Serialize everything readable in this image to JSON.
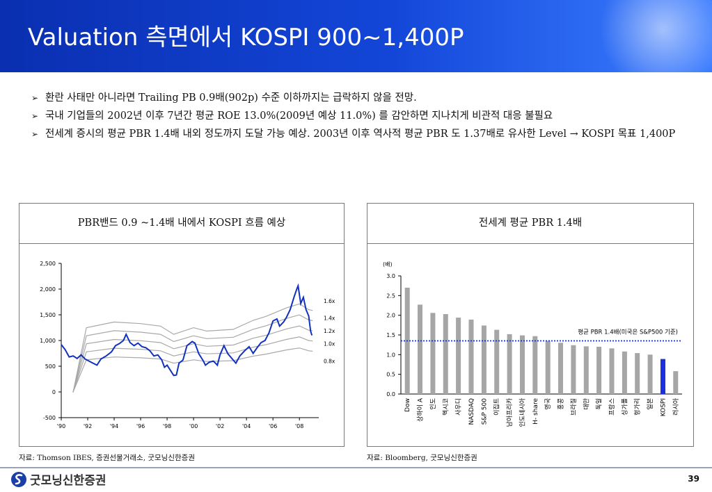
{
  "title": "Valuation 측면에서 KOSPI 900~1,400P",
  "bullets": [
    "환란 사태만 아니라면 Trailing PB 0.9배(902p) 수준 이하까지는 급락하지 않을 전망.",
    "국내 기업들의 2002년 이후 7년간 평균 ROE 13.0%(2009년 예상 11.0%) 를 감안하면 지나치게 비관적 대응 불필요",
    "전세계 증시의 평균 PBR 1.4배 내외 정도까지 도달 가능 예상. 2003년 이후 역사적 평균 PBR 도 1.37배로 유사한 Level → KOSPI 목표 1,400P"
  ],
  "left_panel": {
    "title": "PBR밴드 0.9 ~1.4배 내에서 KOSPI 흐름 예상",
    "source": "자료: Thomson IBES, 증권선물거래소, 굿모닝신한증권"
  },
  "right_panel": {
    "title": "전세계 평균 PBR 1.4배",
    "source": "자료: Bloomberg, 굿모닝신한증권"
  },
  "footer": {
    "logo_text": "굿모닝신한증권",
    "page": "39"
  },
  "colors": {
    "header": "#1346d8",
    "kospi_line": "#1030c0",
    "bars": "#a6a6a6",
    "highlight_bar": "#1e2fe0",
    "avg_line": "#1a2fd0"
  },
  "chart_data": [
    {
      "type": "line",
      "title": "PBR밴드 0.9 ~1.4배 내에서 KOSPI 흐름 예상",
      "x_tick_labels": [
        "'90",
        "'92",
        "'94",
        "'96",
        "'98",
        "'00",
        "'02",
        "'04",
        "'06",
        "'08"
      ],
      "xlim": [
        1990,
        2009.2
      ],
      "y_tick_labels": [
        "2,500",
        "2,000",
        "1,500",
        "1,000",
        "500",
        "0",
        "-500"
      ],
      "ylim": [
        -500,
        2500
      ],
      "band_labels": [
        "1.6x",
        "1.4x",
        "1.2x",
        "1.0x",
        "0.8x"
      ],
      "band_multiples": [
        1.6,
        1.4,
        1.2,
        1.0,
        0.8
      ],
      "band_bps_base": [
        [
          1990.9,
          0
        ],
        [
          1991.9,
          780
        ],
        [
          1994,
          850
        ],
        [
          1996,
          830
        ],
        [
          1997.5,
          800
        ],
        [
          1998.5,
          700
        ],
        [
          2000,
          780
        ],
        [
          2001,
          740
        ],
        [
          2003,
          760
        ],
        [
          2004.5,
          870
        ],
        [
          2005.5,
          920
        ],
        [
          2007,
          1020
        ],
        [
          2008,
          1070
        ],
        [
          2008.7,
          1000
        ],
        [
          2009,
          990
        ]
      ],
      "series": [
        {
          "name": "KOSPI",
          "points": [
            [
              1990,
              920
            ],
            [
              1990.3,
              820
            ],
            [
              1990.6,
              680
            ],
            [
              1990.9,
              700
            ],
            [
              1991.2,
              650
            ],
            [
              1991.5,
              720
            ],
            [
              1991.8,
              640
            ],
            [
              1992.1,
              600
            ],
            [
              1992.4,
              560
            ],
            [
              1992.7,
              520
            ],
            [
              1993.0,
              640
            ],
            [
              1993.4,
              700
            ],
            [
              1993.8,
              780
            ],
            [
              1994.1,
              900
            ],
            [
              1994.4,
              940
            ],
            [
              1994.7,
              1000
            ],
            [
              1994.9,
              1120
            ],
            [
              1995.2,
              960
            ],
            [
              1995.5,
              900
            ],
            [
              1995.8,
              950
            ],
            [
              1996.1,
              880
            ],
            [
              1996.4,
              860
            ],
            [
              1996.7,
              800
            ],
            [
              1997.0,
              700
            ],
            [
              1997.3,
              720
            ],
            [
              1997.6,
              620
            ],
            [
              1997.8,
              480
            ],
            [
              1998.0,
              520
            ],
            [
              1998.3,
              400
            ],
            [
              1998.5,
              320
            ],
            [
              1998.7,
              330
            ],
            [
              1998.9,
              560
            ],
            [
              1999.2,
              620
            ],
            [
              1999.5,
              900
            ],
            [
              1999.9,
              980
            ],
            [
              2000.1,
              950
            ],
            [
              2000.4,
              740
            ],
            [
              2000.7,
              620
            ],
            [
              2000.9,
              520
            ],
            [
              2001.2,
              580
            ],
            [
              2001.5,
              600
            ],
            [
              2001.8,
              520
            ],
            [
              2002.0,
              720
            ],
            [
              2002.3,
              900
            ],
            [
              2002.6,
              740
            ],
            [
              2002.9,
              650
            ],
            [
              2003.2,
              560
            ],
            [
              2003.5,
              700
            ],
            [
              2003.9,
              810
            ],
            [
              2004.2,
              880
            ],
            [
              2004.5,
              750
            ],
            [
              2004.8,
              860
            ],
            [
              2005.1,
              960
            ],
            [
              2005.4,
              1000
            ],
            [
              2005.7,
              1150
            ],
            [
              2006.0,
              1380
            ],
            [
              2006.3,
              1420
            ],
            [
              2006.5,
              1280
            ],
            [
              2006.8,
              1360
            ],
            [
              2007.0,
              1440
            ],
            [
              2007.3,
              1600
            ],
            [
              2007.6,
              1850
            ],
            [
              2007.8,
              2000
            ],
            [
              2007.9,
              2064
            ],
            [
              2008.1,
              1720
            ],
            [
              2008.3,
              1840
            ],
            [
              2008.5,
              1600
            ],
            [
              2008.7,
              1480
            ],
            [
              2008.85,
              1180
            ],
            [
              2008.95,
              1100
            ]
          ]
        }
      ],
      "grid": false
    },
    {
      "type": "bar",
      "title": "전세계 평균 PBR 1.4배",
      "ylabel": "(배)",
      "categories": [
        "Dow",
        "상하이 A",
        "인도",
        "멕시코",
        "사우디",
        "NASDAQ",
        "S&P 500",
        "이집트",
        "남아프리카",
        "인도네시아",
        "H- share",
        "영국",
        "홍콩",
        "브라질",
        "대만",
        "독일",
        "프랑스",
        "싱가폴",
        "헝가리",
        "일본",
        "KOSPI",
        "러시아"
      ],
      "values": [
        2.7,
        2.27,
        2.06,
        2.03,
        1.94,
        1.89,
        1.74,
        1.63,
        1.52,
        1.49,
        1.47,
        1.35,
        1.3,
        1.24,
        1.21,
        1.2,
        1.16,
        1.08,
        1.04,
        1.0,
        0.89,
        0.58
      ],
      "highlight": "KOSPI",
      "ylim": [
        0,
        3.0
      ],
      "y_tick_labels": [
        "3.0",
        "2.5",
        "2.0",
        "1.5",
        "1.0",
        "0.5",
        "0.0"
      ],
      "reference_line": {
        "value": 1.35,
        "label": "평균 PBR 1.4배(미국은 S&P500 기준)"
      }
    }
  ]
}
